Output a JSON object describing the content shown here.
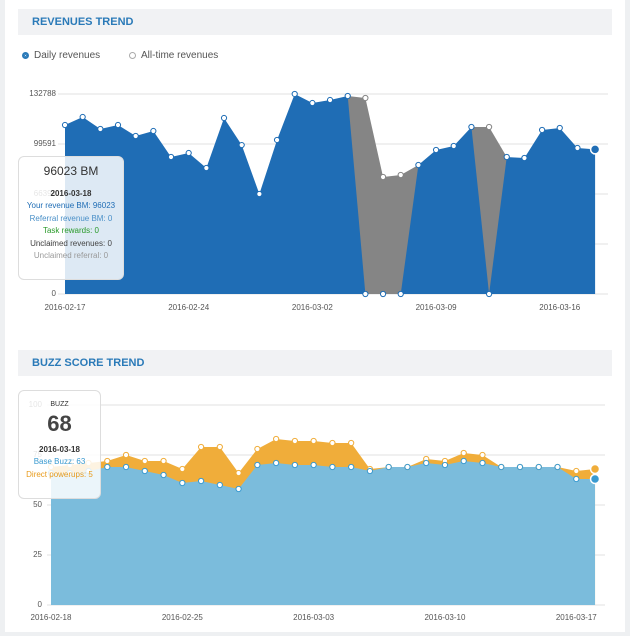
{
  "revenues_header": {
    "title": "REVENUES TREND",
    "options": [
      "Daily revenues",
      "All-time revenues"
    ]
  },
  "buzz_header": {
    "title": "BUZZ SCORE TREND"
  },
  "chart_data": [
    {
      "type": "area",
      "title": "REVENUES TREND",
      "categories": [
        "2016-02-17",
        null,
        null,
        null,
        null,
        null,
        null,
        "2016-02-24",
        null,
        null,
        null,
        null,
        null,
        null,
        "2016-03-02",
        null,
        null,
        null,
        null,
        null,
        null,
        "2016-03-09",
        null,
        null,
        null,
        null,
        null,
        null,
        "2016-03-16",
        null,
        null
      ],
      "series": [
        {
          "color": "#1f6db5",
          "values": [
            112200,
            117500,
            109550,
            112200,
            104900,
            108200,
            90960,
            93600,
            83660,
            116850,
            98900,
            66400,
            102250,
            132800,
            126800,
            128800,
            131460,
            0,
            0,
            0,
            85650,
            95610,
            98270,
            110880,
            0,
            90960,
            90300,
            108900,
            110220,
            96950,
            96023
          ]
        },
        {
          "color": "#858585",
          "values": [
            null,
            null,
            null,
            null,
            null,
            null,
            null,
            null,
            null,
            null,
            null,
            null,
            null,
            null,
            null,
            null,
            null,
            130130,
            77680,
            79010,
            null,
            null,
            null,
            null,
            110880,
            null,
            null,
            null,
            null,
            null,
            null
          ]
        }
      ],
      "ylim": [
        0,
        132788
      ],
      "yticks": [
        0,
        33197,
        66394,
        99591,
        132788
      ],
      "grid": true,
      "tooltip": {
        "title": "96023 BM",
        "date": "2016-03-18",
        "lines": [
          "Your revenue BM: 96023",
          "Referral revenue BM: 0",
          "Task rewards: 0",
          "Unclaimed revenues: 0",
          "Unclaimed referral: 0"
        ]
      }
    },
    {
      "type": "stacked_area",
      "title": "BUZZ SCORE TREND",
      "categories": [
        "2016-02-18",
        null,
        null,
        null,
        null,
        null,
        null,
        "2016-02-25",
        null,
        null,
        null,
        null,
        null,
        null,
        "2016-03-03",
        null,
        null,
        null,
        null,
        null,
        null,
        "2016-03-10",
        null,
        null,
        null,
        null,
        null,
        null,
        "2016-03-17",
        null
      ],
      "series": [
        {
          "color": "#7bbcdc",
          "values": [
            66,
            66,
            67,
            69,
            69,
            67,
            65,
            61,
            62,
            60,
            58,
            70,
            71,
            70,
            70,
            69,
            69,
            67,
            69,
            69,
            71,
            70,
            72,
            71,
            69,
            69,
            69,
            69,
            63,
            63
          ]
        },
        {
          "color": "#f0ad3a",
          "values": [
            3,
            4,
            4,
            3,
            6,
            5,
            7,
            7,
            17,
            19,
            8,
            8,
            12,
            12,
            12,
            12,
            12,
            1,
            0,
            0,
            2,
            2,
            4,
            4,
            0,
            0,
            0,
            0,
            4,
            5
          ]
        }
      ],
      "ylim": [
        0,
        100
      ],
      "yticks": [
        0,
        25,
        50,
        75,
        100
      ],
      "grid": true,
      "tooltip": {
        "title": "BUZZ",
        "value": "68",
        "date": "2016-03-18",
        "lines": [
          "Base Buzz: 63",
          "Direct powerups: 5"
        ]
      }
    }
  ]
}
